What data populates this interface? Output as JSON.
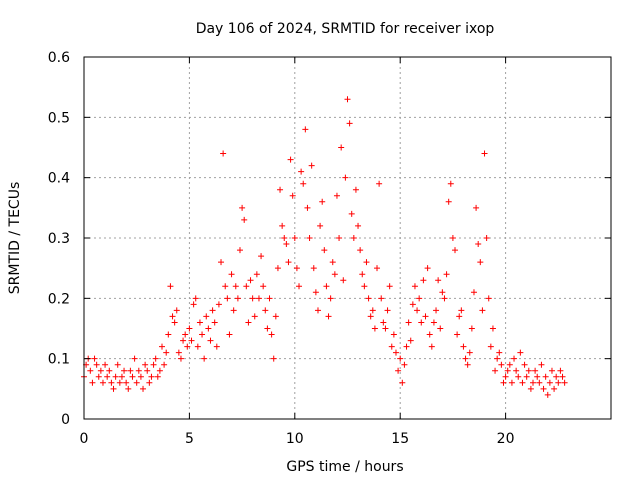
{
  "chart_data": {
    "type": "scatter",
    "title": "Day 106 of 2024, SRMTID for receiver ixop",
    "xlabel": "GPS time / hours",
    "ylabel": "SRMTID / TECUs",
    "xlim": [
      0,
      25
    ],
    "ylim": [
      0,
      0.6
    ],
    "xticks": [
      0,
      5,
      10,
      15,
      20
    ],
    "xtick_labels": [
      "0",
      "5",
      "10",
      "15",
      "20"
    ],
    "yticks": [
      0,
      0.1,
      0.2,
      0.3,
      0.4,
      0.5,
      0.6
    ],
    "ytick_labels": [
      "0",
      "0.1",
      "0.2",
      "0.3",
      "0.4",
      "0.5",
      "0.6"
    ],
    "grid": true,
    "marker": "plus",
    "color": "#ff0000",
    "series": [
      {
        "name": "SRMTID",
        "x": [
          0.0,
          0.1,
          0.2,
          0.3,
          0.4,
          0.5,
          0.6,
          0.7,
          0.8,
          0.9,
          1.0,
          1.1,
          1.2,
          1.3,
          1.4,
          1.5,
          1.6,
          1.7,
          1.8,
          1.9,
          2.0,
          2.1,
          2.2,
          2.3,
          2.4,
          2.5,
          2.6,
          2.7,
          2.8,
          2.9,
          3.0,
          3.1,
          3.2,
          3.3,
          3.4,
          3.5,
          3.6,
          3.7,
          3.8,
          3.9,
          4.0,
          4.1,
          4.2,
          4.3,
          4.4,
          4.5,
          4.6,
          4.7,
          4.8,
          4.9,
          5.0,
          5.1,
          5.2,
          5.3,
          5.4,
          5.5,
          5.6,
          5.7,
          5.8,
          5.9,
          6.0,
          6.1,
          6.2,
          6.3,
          6.4,
          6.5,
          6.6,
          6.7,
          6.8,
          6.9,
          7.0,
          7.1,
          7.2,
          7.3,
          7.4,
          7.5,
          7.6,
          7.7,
          7.8,
          7.9,
          8.0,
          8.1,
          8.2,
          8.3,
          8.4,
          8.5,
          8.6,
          8.7,
          8.8,
          8.9,
          9.0,
          9.1,
          9.2,
          9.3,
          9.4,
          9.5,
          9.6,
          9.7,
          9.8,
          9.9,
          10.0,
          10.1,
          10.2,
          10.3,
          10.4,
          10.5,
          10.6,
          10.7,
          10.8,
          10.9,
          11.0,
          11.1,
          11.2,
          11.3,
          11.4,
          11.5,
          11.6,
          11.7,
          11.8,
          11.9,
          12.0,
          12.1,
          12.2,
          12.3,
          12.4,
          12.5,
          12.6,
          12.7,
          12.8,
          12.9,
          13.0,
          13.1,
          13.2,
          13.3,
          13.4,
          13.5,
          13.6,
          13.7,
          13.8,
          13.9,
          14.0,
          14.1,
          14.2,
          14.3,
          14.4,
          14.5,
          14.6,
          14.7,
          14.8,
          14.9,
          15.0,
          15.1,
          15.2,
          15.3,
          15.4,
          15.5,
          15.6,
          15.7,
          15.8,
          15.9,
          16.0,
          16.1,
          16.2,
          16.3,
          16.4,
          16.5,
          16.6,
          16.7,
          16.8,
          16.9,
          17.0,
          17.1,
          17.2,
          17.3,
          17.4,
          17.5,
          17.6,
          17.7,
          17.8,
          17.9,
          18.0,
          18.1,
          18.2,
          18.3,
          18.4,
          18.5,
          18.6,
          18.7,
          18.8,
          18.9,
          19.0,
          19.1,
          19.2,
          19.3,
          19.4,
          19.5,
          19.6,
          19.7,
          19.8,
          19.9,
          20.0,
          20.1,
          20.2,
          20.3,
          20.4,
          20.5,
          20.6,
          20.7,
          20.8,
          20.9,
          21.0,
          21.1,
          21.2,
          21.3,
          21.4,
          21.5,
          21.6,
          21.7,
          21.8,
          21.9,
          22.0,
          22.1,
          22.2,
          22.3,
          22.4,
          22.5,
          22.6,
          22.7,
          22.8
        ],
        "y": [
          0.07,
          0.09,
          0.1,
          0.08,
          0.06,
          0.1,
          0.09,
          0.07,
          0.08,
          0.06,
          0.09,
          0.07,
          0.08,
          0.06,
          0.05,
          0.07,
          0.09,
          0.06,
          0.07,
          0.08,
          0.06,
          0.05,
          0.08,
          0.07,
          0.1,
          0.06,
          0.08,
          0.07,
          0.05,
          0.09,
          0.08,
          0.06,
          0.07,
          0.09,
          0.1,
          0.07,
          0.08,
          0.12,
          0.09,
          0.11,
          0.14,
          0.22,
          0.17,
          0.16,
          0.18,
          0.11,
          0.1,
          0.13,
          0.14,
          0.12,
          0.15,
          0.13,
          0.19,
          0.2,
          0.12,
          0.16,
          0.14,
          0.1,
          0.17,
          0.15,
          0.13,
          0.18,
          0.16,
          0.12,
          0.19,
          0.26,
          0.44,
          0.22,
          0.2,
          0.14,
          0.24,
          0.18,
          0.22,
          0.2,
          0.28,
          0.35,
          0.33,
          0.22,
          0.16,
          0.23,
          0.2,
          0.17,
          0.24,
          0.2,
          0.27,
          0.22,
          0.18,
          0.15,
          0.2,
          0.14,
          0.1,
          0.17,
          0.25,
          0.38,
          0.32,
          0.3,
          0.29,
          0.26,
          0.43,
          0.37,
          0.3,
          0.25,
          0.22,
          0.41,
          0.39,
          0.48,
          0.35,
          0.3,
          0.42,
          0.25,
          0.21,
          0.18,
          0.32,
          0.36,
          0.28,
          0.22,
          0.17,
          0.2,
          0.26,
          0.24,
          0.37,
          0.3,
          0.45,
          0.23,
          0.4,
          0.53,
          0.49,
          0.34,
          0.3,
          0.38,
          0.32,
          0.28,
          0.24,
          0.22,
          0.26,
          0.2,
          0.17,
          0.18,
          0.15,
          0.25,
          0.39,
          0.2,
          0.16,
          0.15,
          0.18,
          0.22,
          0.12,
          0.14,
          0.11,
          0.08,
          0.1,
          0.06,
          0.09,
          0.12,
          0.16,
          0.13,
          0.19,
          0.22,
          0.18,
          0.2,
          0.16,
          0.23,
          0.17,
          0.25,
          0.14,
          0.12,
          0.16,
          0.18,
          0.23,
          0.15,
          0.21,
          0.2,
          0.24,
          0.36,
          0.39,
          0.3,
          0.28,
          0.14,
          0.17,
          0.18,
          0.12,
          0.1,
          0.09,
          0.11,
          0.15,
          0.21,
          0.35,
          0.29,
          0.26,
          0.18,
          0.44,
          0.3,
          0.2,
          0.12,
          0.15,
          0.08,
          0.1,
          0.11,
          0.09,
          0.06,
          0.07,
          0.08,
          0.09,
          0.06,
          0.1,
          0.08,
          0.07,
          0.11,
          0.06,
          0.09,
          0.07,
          0.08,
          0.05,
          0.06,
          0.08,
          0.07,
          0.06,
          0.09,
          0.05,
          0.07,
          0.04,
          0.06,
          0.08,
          0.05,
          0.07,
          0.06,
          0.08,
          0.07,
          0.06
        ]
      }
    ]
  }
}
